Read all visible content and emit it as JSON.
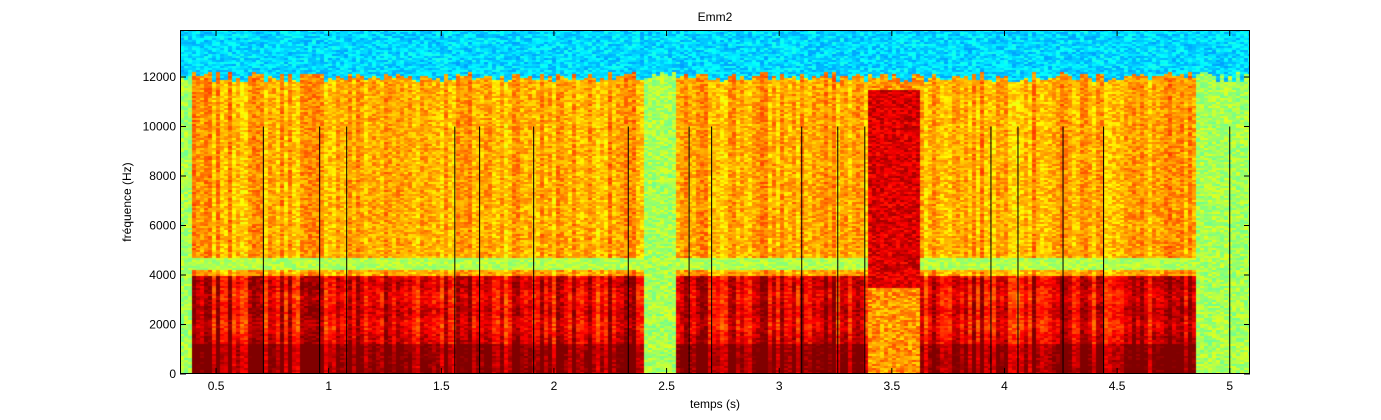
{
  "chart_data": {
    "type": "heatmap",
    "title": "Emm2",
    "xlabel": "temps (s)",
    "ylabel": "fréquence (Hz)",
    "xlim": [
      0.34,
      5.09
    ],
    "ylim": [
      0,
      13900
    ],
    "xticks": [
      0.5,
      1,
      1.5,
      2,
      2.5,
      3,
      3.5,
      4,
      4.5,
      5
    ],
    "xtick_labels": [
      "0.5",
      "1",
      "1.5",
      "2",
      "2.5",
      "3",
      "3.5",
      "4",
      "4.5",
      "5"
    ],
    "yticks": [
      0,
      2000,
      4000,
      6000,
      8000,
      10000,
      12000
    ],
    "ytick_labels": [
      "0",
      "2000",
      "4000",
      "6000",
      "8000",
      "10000",
      "12000"
    ],
    "colormap": "jet",
    "segment_markers": {
      "color": "#000000",
      "top_frequency": 10000,
      "times": [
        0.71,
        0.96,
        1.08,
        1.56,
        1.67,
        1.91,
        2.33,
        2.6,
        2.7,
        3.1,
        3.26,
        3.38,
        3.94,
        4.06,
        4.26,
        4.44,
        5.0
      ]
    },
    "speech_regions": [
      [
        0.4,
        2.4
      ],
      [
        2.55,
        3.4
      ],
      [
        3.4,
        3.62
      ],
      [
        3.62,
        4.85
      ]
    ],
    "grid": false
  }
}
